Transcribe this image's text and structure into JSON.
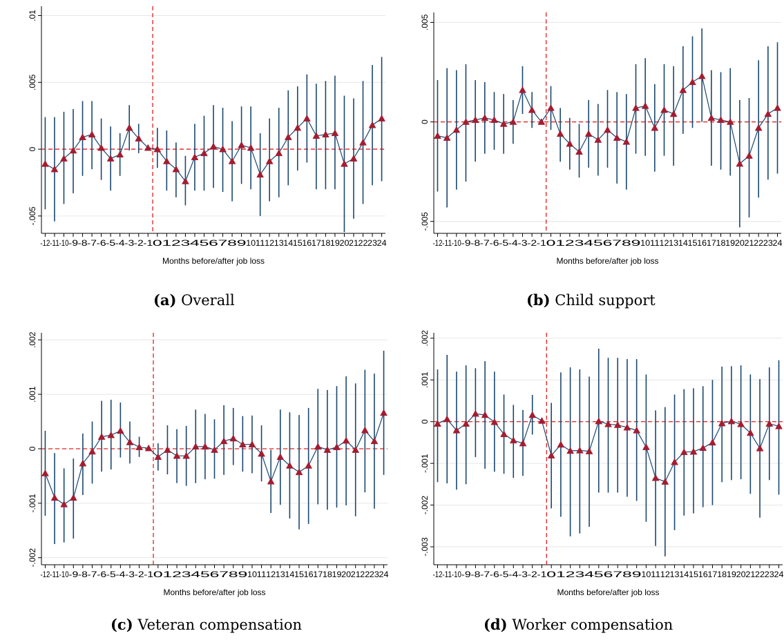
{
  "chart_data": [
    {
      "id": "a",
      "type": "scatter",
      "caption_letter": "(a)",
      "caption_text": "Overall",
      "xlabel": "Months before/after job loss",
      "x": [
        -12,
        -11,
        -10,
        -9,
        -8,
        -7,
        -6,
        -5,
        -4,
        -3,
        -2,
        -1,
        0,
        1,
        2,
        3,
        4,
        5,
        6,
        7,
        8,
        9,
        10,
        11,
        12,
        13,
        14,
        15,
        16,
        17,
        18,
        19,
        20,
        21,
        22,
        23,
        24
      ],
      "estimate": [
        -0.0011,
        -0.0015,
        -0.0007,
        -0.0001,
        0.0009,
        0.0011,
        0.0001,
        -0.0007,
        -0.0004,
        0.0016,
        0.0008,
        0.0001,
        0,
        -0.0009,
        -0.0015,
        -0.0024,
        -0.0006,
        -0.0003,
        0.0002,
        0,
        -0.0009,
        0.0003,
        0.0001,
        -0.0019,
        -0.0009,
        -0.0003,
        0.0009,
        0.0016,
        0.0023,
        0.001,
        0.0011,
        0.0012,
        -0.0011,
        -0.0007,
        0.0005,
        0.0018,
        0.0023
      ],
      "ci_low": [
        -0.0045,
        -0.0054,
        -0.0041,
        -0.0033,
        -0.002,
        -0.0015,
        -0.0023,
        -0.0031,
        -0.002,
        -0.0001,
        -0.0003,
        0.0001,
        -0.0014,
        -0.0031,
        -0.0036,
        -0.0042,
        -0.0031,
        -0.0031,
        -0.0029,
        -0.0032,
        -0.0039,
        -0.0026,
        -0.003,
        -0.005,
        -0.0039,
        -0.0036,
        -0.0027,
        -0.0016,
        -0.001,
        -0.003,
        -0.003,
        -0.003,
        -0.0062,
        -0.0052,
        -0.0041,
        -0.0027,
        -0.0024
      ],
      "ci_high": [
        0.0024,
        0.0024,
        0.0028,
        0.003,
        0.0036,
        0.0036,
        0.0023,
        0.0017,
        0.0012,
        0.0033,
        0.0019,
        0.0001,
        0.0016,
        0.0014,
        0.0005,
        -0.0005,
        0.0019,
        0.0025,
        0.0033,
        0.0031,
        0.0021,
        0.0032,
        0.0032,
        0.0012,
        0.0023,
        0.0031,
        0.0044,
        0.0047,
        0.0056,
        0.0049,
        0.0051,
        0.0055,
        0.004,
        0.0038,
        0.0051,
        0.0063,
        0.0069
      ],
      "ylim": [
        -0.0063,
        0.0107
      ],
      "yticks": [
        -0.005,
        0,
        0.005,
        0.01
      ],
      "ytick_labels": [
        "-.005",
        "0",
        ".005",
        ".01"
      ],
      "event_x": -0.5,
      "grid": true
    },
    {
      "id": "b",
      "type": "scatter",
      "caption_letter": "(b)",
      "caption_text": "Child support",
      "xlabel": "Months before/after job loss",
      "x": [
        -12,
        -11,
        -10,
        -9,
        -8,
        -7,
        -6,
        -5,
        -4,
        -3,
        -2,
        -1,
        0,
        1,
        2,
        3,
        4,
        5,
        6,
        7,
        8,
        9,
        10,
        11,
        12,
        13,
        14,
        15,
        16,
        17,
        18,
        19,
        20,
        21,
        22,
        23,
        24
      ],
      "estimate": [
        -0.0007,
        -0.0008,
        -0.0004,
        0,
        0.0001,
        0.0002,
        0.0001,
        -0.0001,
        0,
        0.0016,
        0.0006,
        0,
        0.0007,
        -0.0006,
        -0.0011,
        -0.0015,
        -0.0006,
        -0.0009,
        -0.0004,
        -0.0008,
        -0.001,
        0.0007,
        0.0008,
        -0.0003,
        0.0006,
        0.0004,
        0.0016,
        0.002,
        0.0023,
        0.0002,
        0.0001,
        0,
        -0.0021,
        -0.0017,
        -0.0003,
        0.0004,
        0.0007
      ],
      "ci_low": [
        -0.0035,
        -0.0043,
        -0.0034,
        -0.003,
        -0.002,
        -0.0016,
        -0.0014,
        -0.0016,
        -0.0011,
        0.0004,
        -0.0003,
        0,
        -0.0004,
        -0.002,
        -0.0024,
        -0.0028,
        -0.0023,
        -0.0027,
        -0.0023,
        -0.0031,
        -0.0034,
        -0.0016,
        -0.0017,
        -0.0025,
        -0.0017,
        -0.0022,
        -0.0006,
        -0.0003,
        0,
        -0.0022,
        -0.0024,
        -0.0027,
        -0.0053,
        -0.0048,
        -0.0038,
        -0.0029,
        -0.0026
      ],
      "ci_high": [
        0.0021,
        0.0027,
        0.0026,
        0.0029,
        0.0021,
        0.002,
        0.0015,
        0.0014,
        0.0011,
        0.0028,
        0.0015,
        0,
        0.0018,
        0.0007,
        0.0002,
        -0.0001,
        0.0011,
        0.0009,
        0.0016,
        0.0015,
        0.0014,
        0.0029,
        0.0032,
        0.0019,
        0.0029,
        0.0028,
        0.0038,
        0.0043,
        0.0047,
        0.0026,
        0.0025,
        0.0027,
        0.0011,
        0.0012,
        0.0031,
        0.0038,
        0.004
      ],
      "ylim": [
        -0.0056,
        0.0055
      ],
      "yticks": [
        -0.005,
        0,
        0.005
      ],
      "ytick_labels": [
        "-.005",
        "0",
        ".005"
      ],
      "event_x": -0.5,
      "grid": true
    },
    {
      "id": "c",
      "type": "scatter",
      "caption_letter": "(c)",
      "caption_text": "Veteran compensation",
      "xlabel": "Months before/after job loss",
      "x": [
        -12,
        -11,
        -10,
        -9,
        -8,
        -7,
        -6,
        -5,
        -4,
        -3,
        -2,
        -1,
        0,
        1,
        2,
        3,
        4,
        5,
        6,
        7,
        8,
        9,
        10,
        11,
        12,
        13,
        14,
        15,
        16,
        17,
        18,
        19,
        20,
        21,
        22,
        23,
        24
      ],
      "estimate": [
        -0.00045,
        -0.0009,
        -0.00102,
        -0.0009,
        -0.00027,
        -5e-05,
        0.00022,
        0.00025,
        0.00033,
        0.00012,
        3e-05,
        1e-05,
        -0.00015,
        -2e-05,
        -0.00013,
        -0.00013,
        4e-05,
        4e-05,
        -2e-05,
        0.00014,
        0.00019,
        8e-05,
        8e-05,
        -9e-05,
        -0.0006,
        -0.00015,
        -0.00031,
        -0.00043,
        -0.00031,
        4e-05,
        -2e-05,
        3e-05,
        0.00015,
        -2e-05,
        0.00034,
        0.00014,
        0.00066
      ],
      "ci_low": [
        -0.00123,
        -0.00175,
        -0.00172,
        -0.00165,
        -0.00085,
        -0.00064,
        -0.00042,
        -0.00038,
        -0.00016,
        -0.00027,
        -0.00015,
        1e-05,
        -0.0004,
        -0.00047,
        -0.00063,
        -0.00068,
        -0.00063,
        -0.00056,
        -0.00055,
        -0.00048,
        -0.0003,
        -0.00042,
        -0.00045,
        -0.0006,
        -0.00118,
        -0.00103,
        -0.00128,
        -0.00148,
        -0.00138,
        -0.00102,
        -0.00112,
        -0.00108,
        -0.00104,
        -0.00124,
        -0.0008,
        -0.0011,
        -0.00048
      ],
      "ci_high": [
        0.00033,
        -8e-05,
        -0.00036,
        -0.00018,
        0.00028,
        0.0005,
        0.00088,
        0.0009,
        0.00085,
        0.0005,
        0.00022,
        1e-05,
        0.0001,
        0.00043,
        0.00036,
        0.00042,
        0.00072,
        0.00064,
        0.00054,
        0.0008,
        0.00075,
        0.0006,
        0.00061,
        0.00043,
        -2e-05,
        0.00072,
        0.00067,
        0.00062,
        0.00075,
        0.0011,
        0.00108,
        0.00115,
        0.00133,
        0.0012,
        0.00145,
        0.00138,
        0.0018
      ],
      "ylim": [
        -0.00213,
        0.00213
      ],
      "yticks": [
        -0.002,
        -0.001,
        0,
        0.001,
        0.002
      ],
      "ytick_labels": [
        "-.002",
        "-.001",
        "0",
        ".001",
        ".002"
      ],
      "event_x": -0.5,
      "grid": true
    },
    {
      "id": "d",
      "type": "scatter",
      "caption_letter": "(d)",
      "caption_text": "Worker compensation",
      "xlabel": "Months before/after job loss",
      "x": [
        -12,
        -11,
        -10,
        -9,
        -8,
        -7,
        -6,
        -5,
        -4,
        -3,
        -2,
        -1,
        0,
        1,
        2,
        3,
        4,
        5,
        6,
        7,
        8,
        9,
        10,
        11,
        12,
        13,
        14,
        15,
        16,
        17,
        18,
        19,
        20,
        21,
        22,
        23,
        24
      ],
      "estimate": [
        -5e-05,
        6e-05,
        -0.00021,
        -5e-05,
        0.00019,
        0.00016,
        -1e-05,
        -0.0003,
        -0.00045,
        -0.00052,
        0.00016,
        2e-05,
        -0.00081,
        -0.00055,
        -0.0007,
        -0.00069,
        -0.00071,
        1e-05,
        -6e-05,
        -8e-05,
        -0.00014,
        -0.00021,
        -0.00061,
        -0.00135,
        -0.00144,
        -0.00097,
        -0.00073,
        -0.00072,
        -0.00063,
        -0.0005,
        -4e-05,
        1e-05,
        -6e-05,
        -0.00027,
        -0.00064,
        -5e-05,
        -0.00011
      ],
      "ci_low": [
        -0.00145,
        -0.00148,
        -0.00163,
        -0.0015,
        -0.00085,
        -0.00113,
        -0.0012,
        -0.00125,
        -0.00135,
        -0.0013,
        -0.00031,
        2e-05,
        -0.00208,
        -0.00228,
        -0.00275,
        -0.00268,
        -0.00252,
        -0.0017,
        -0.0017,
        -0.0017,
        -0.0018,
        -0.0019,
        -0.0024,
        -0.00298,
        -0.00323,
        -0.0026,
        -0.00225,
        -0.0022,
        -0.00205,
        -0.002,
        -0.00145,
        -0.0014,
        -0.00138,
        -0.00173,
        -0.0023,
        -0.0014,
        -0.00175
      ],
      "ci_high": [
        0.00125,
        0.0016,
        0.0012,
        0.00135,
        0.00128,
        0.00145,
        0.0012,
        0.00065,
        0.0004,
        0.00028,
        0.00064,
        2e-05,
        0.00045,
        0.00118,
        0.0013,
        0.00125,
        0.00108,
        0.00175,
        0.00153,
        0.00153,
        0.0015,
        0.0015,
        0.00113,
        0.00027,
        0.00035,
        0.00065,
        0.00078,
        0.0008,
        0.00085,
        0.001,
        0.00132,
        0.00133,
        0.00135,
        0.00113,
        0.00102,
        0.0013,
        0.00147
      ],
      "ylim": [
        -0.00343,
        0.00213
      ],
      "yticks": [
        -0.003,
        -0.002,
        -0.001,
        0,
        0.001,
        0.002
      ],
      "ytick_labels": [
        "-.003",
        "-.002",
        "-.001",
        "0",
        ".001",
        ".002"
      ],
      "event_x": -0.5,
      "grid": true
    }
  ]
}
